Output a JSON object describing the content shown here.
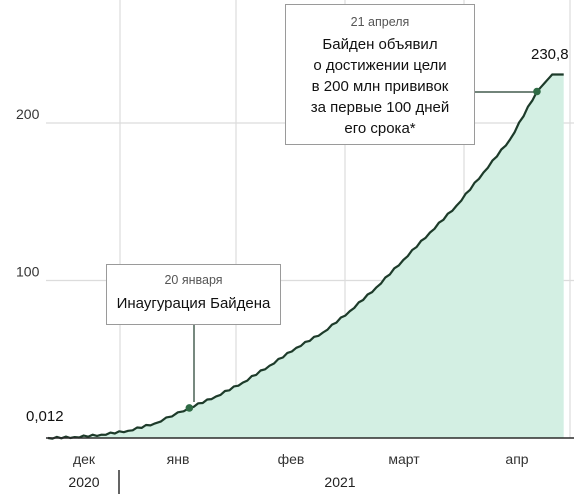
{
  "chart_data": {
    "type": "area",
    "title": "",
    "xlabel": "",
    "ylabel": "",
    "unit_hint": "",
    "x_tick_labels": [
      "дек",
      "янв",
      "фев",
      "март",
      "апр"
    ],
    "year_labels": [
      "2020",
      "2021"
    ],
    "y_ticks": [
      100,
      200
    ],
    "y_tick_labels": [
      "100",
      "200"
    ],
    "ylim": [
      0,
      250
    ],
    "xlim": [
      "2020-12-14",
      "2021-04-28"
    ],
    "grid": true,
    "start_label": "0,012",
    "end_label": "230,8",
    "series": [
      {
        "values": [
          {
            "date": "2020-12-14",
            "y": 0.012
          },
          {
            "date": "2020-12-21",
            "y": 0.6
          },
          {
            "date": "2020-12-28",
            "y": 2.1
          },
          {
            "date": "2021-01-04",
            "y": 4.6
          },
          {
            "date": "2021-01-11",
            "y": 9.3
          },
          {
            "date": "2021-01-20",
            "y": 19.1
          },
          {
            "date": "2021-01-27",
            "y": 26.4
          },
          {
            "date": "2021-02-03",
            "y": 35.2
          },
          {
            "date": "2021-02-10",
            "y": 45.9
          },
          {
            "date": "2021-02-17",
            "y": 57.3
          },
          {
            "date": "2021-02-24",
            "y": 67.0
          },
          {
            "date": "2021-03-03",
            "y": 80.5
          },
          {
            "date": "2021-03-10",
            "y": 95.7
          },
          {
            "date": "2021-03-17",
            "y": 113.0
          },
          {
            "date": "2021-03-24",
            "y": 130.5
          },
          {
            "date": "2021-03-31",
            "y": 147.6
          },
          {
            "date": "2021-04-07",
            "y": 168.6
          },
          {
            "date": "2021-04-14",
            "y": 189.7
          },
          {
            "date": "2021-04-21",
            "y": 220.0
          },
          {
            "date": "2021-04-25",
            "y": 230.8
          },
          {
            "date": "2021-04-28",
            "y": 230.8
          }
        ]
      }
    ],
    "annotations": [
      {
        "date_text": "20 января",
        "text": "Инаугурация Байдена",
        "x": "2021-01-20",
        "y": 19.1
      },
      {
        "date_text": "21 апреля",
        "text_lines": [
          "Байден объявил",
          "о достижении цели",
          "в 200 млн прививок",
          "за первые 100 дней",
          "его срока*"
        ],
        "x": "2021-04-21",
        "y": 220.0
      }
    ]
  },
  "colors": {
    "line": "#1d3b2a",
    "fill": "#d3efe3",
    "grid": "#dcdcdc",
    "marker": "#2f6b45"
  }
}
